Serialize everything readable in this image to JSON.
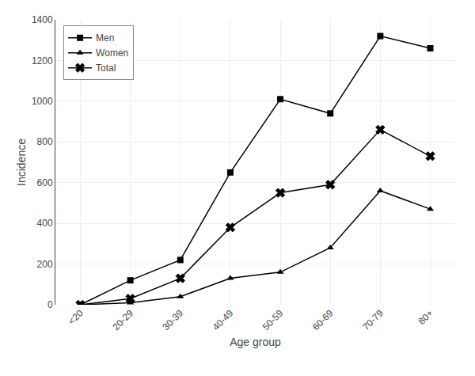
{
  "chart_data": {
    "type": "line",
    "categories": [
      "<20",
      "20-29",
      "30-39",
      "40-49",
      "50-59",
      "60-69",
      "70-79",
      "80+"
    ],
    "series": [
      {
        "name": "Men",
        "color": "#000000",
        "marker": "square",
        "values": [
          0,
          120,
          220,
          650,
          1010,
          940,
          1320,
          1260
        ]
      },
      {
        "name": "Women",
        "color": "#000000",
        "marker": "triangle-up",
        "values": [
          0,
          10,
          40,
          130,
          160,
          280,
          560,
          470
        ]
      },
      {
        "name": "Total",
        "color": "#000000",
        "marker": "x",
        "values": [
          0,
          30,
          130,
          380,
          550,
          590,
          860,
          730
        ]
      }
    ],
    "x_label": "Age group",
    "y_label": "Incidence",
    "ylim": [
      0,
      1400
    ],
    "yticks": [
      0,
      200,
      400,
      600,
      800,
      1000,
      1200,
      1400
    ],
    "grid": true,
    "legend": "upper left"
  }
}
